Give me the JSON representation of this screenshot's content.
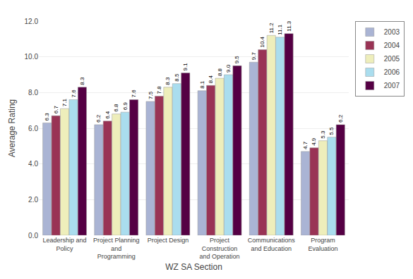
{
  "chart_data": {
    "type": "bar",
    "categories": [
      "Leadership and\nPolicy",
      "Project Planning\nand\nProgramming",
      "Project Design",
      "Project\nConstruction\nand Operation",
      "Communications\nand Education",
      "Program\nEvaluation"
    ],
    "series": [
      {
        "name": "2003",
        "color": "#aab4d4",
        "values": [
          6.3,
          6.2,
          7.5,
          8.1,
          9.7,
          4.7
        ],
        "value_labels": [
          "6.3",
          "6.2",
          "7.5",
          "8.1",
          "9.7",
          "4.7"
        ]
      },
      {
        "name": "2004",
        "color": "#993355",
        "values": [
          6.7,
          6.4,
          7.8,
          8.4,
          10.4,
          4.9
        ],
        "value_labels": [
          "6.7",
          "6.4",
          "7.8",
          "8.4",
          "10.4",
          "4.9"
        ]
      },
      {
        "name": "2005",
        "color": "#eeeebb",
        "values": [
          7.1,
          6.8,
          8.3,
          8.8,
          11.2,
          5.3
        ],
        "value_labels": [
          "7.1",
          "6.8",
          "8.3",
          "8.8",
          "11.2",
          "5.3"
        ]
      },
      {
        "name": "2006",
        "color": "#aaddee",
        "values": [
          7.6,
          6.9,
          8.5,
          9.0,
          11.1,
          5.5
        ],
        "value_labels": [
          "7.6",
          "6.9",
          "8.5",
          "9.0",
          "11.1",
          "5.5"
        ]
      },
      {
        "name": "2007",
        "color": "#550044",
        "values": [
          8.3,
          7.6,
          9.1,
          9.5,
          11.3,
          6.2
        ],
        "value_labels": [
          "8.3",
          "7.6",
          "9.1",
          "9.5",
          "11.3",
          "6.2"
        ]
      }
    ],
    "xlabel": "WZ SA Section",
    "ylabel": "Average Rating",
    "ylim": [
      0.0,
      12.0
    ],
    "yticks": [
      {
        "value": 0,
        "label": "0.0"
      },
      {
        "value": 2,
        "label": "2.0"
      },
      {
        "value": 4,
        "label": "4.0"
      },
      {
        "value": 6,
        "label": "6.0"
      },
      {
        "value": 8,
        "label": "8.0"
      },
      {
        "value": 10,
        "label": "10.0"
      },
      {
        "value": 12,
        "label": "12.0"
      }
    ],
    "grid": true,
    "legend": "upper right",
    "data_labels": true
  }
}
